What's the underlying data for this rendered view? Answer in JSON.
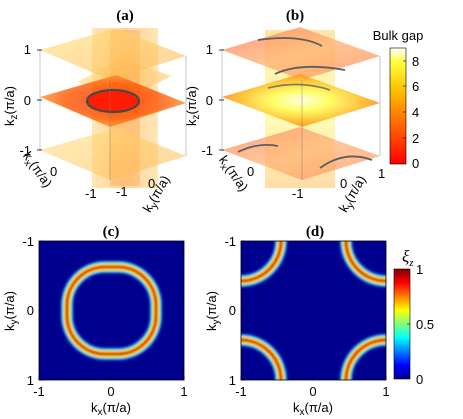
{
  "panels": {
    "a": {
      "label": "(a)"
    },
    "b": {
      "label": "(b)"
    },
    "c": {
      "label": "(c)"
    },
    "d": {
      "label": "(d)"
    }
  },
  "axis_text": {
    "kx": "k",
    "ky": "k",
    "kz": "k",
    "sub_x": "x",
    "sub_y": "y",
    "sub_z": "z",
    "unit": "(π/a)"
  },
  "colorbar_top": {
    "title": "Bulk gap",
    "ticks": [
      "8",
      "6",
      "4",
      "2",
      "0"
    ]
  },
  "colorbar_bottom": {
    "title_symbol": "ξ",
    "title_sub": "z",
    "ticks": [
      "1",
      "0.5",
      "0"
    ]
  },
  "colors": {
    "gap_low": "#ff0000",
    "gap_mid": "#ff8c00",
    "gap_high": "#ffff00",
    "gap_top": "#ffffff",
    "xi_low": "#00008f",
    "xi_high": "#800000",
    "ring_3d": "#3a4a4a"
  },
  "chart_data": [
    {
      "panel": "(a)",
      "type": "heatmap",
      "subtype": "3d-slices",
      "xlabel": "kx(π/a)",
      "ylabel": "ky(π/a)",
      "zlabel": "kz(π/a)",
      "xticks": [
        "-1",
        "0"
      ],
      "yticks": [
        "-1",
        "0"
      ],
      "zticks": [
        "-1",
        "0",
        "1"
      ],
      "xlim": [
        -1,
        1
      ],
      "ylim": [
        -1,
        1
      ],
      "zlim": [
        -1,
        1
      ],
      "colorbar": "Bulk gap",
      "clim": [
        0,
        9
      ],
      "feature": "nodal ring at kz=0, centered at k=0, radius ≈ 0.5 π/a, gap ≈ 0 on ring"
    },
    {
      "panel": "(b)",
      "type": "heatmap",
      "subtype": "3d-slices",
      "xlabel": "kx(π/a)",
      "ylabel": "ky(π/a)",
      "zlabel": "kz(π/a)",
      "xticks": [
        "0"
      ],
      "yticks": [
        "-1",
        "0",
        "1"
      ],
      "zticks": [
        "-1",
        "0",
        "1"
      ],
      "xlim": [
        -1,
        1
      ],
      "ylim": [
        -1,
        1
      ],
      "zlim": [
        -1,
        1
      ],
      "colorbar": "Bulk gap",
      "clim": [
        0,
        9
      ],
      "feature": "nodal rings centered at zone corners (±1, ±1)"
    },
    {
      "panel": "(c)",
      "type": "heatmap",
      "xlabel": "kx(π/a)",
      "ylabel": "ky(π/a)",
      "xticks": [
        "-1",
        "0",
        "1"
      ],
      "yticks": [
        "-1",
        "0",
        "1"
      ],
      "xlim": [
        -1,
        1
      ],
      "ylim": [
        1,
        -1
      ],
      "colorbar": "ξz",
      "clim": [
        0,
        1
      ],
      "ring": {
        "center": [
          0,
          0
        ],
        "radius": 0.5,
        "peak": 1,
        "background": 0
      }
    },
    {
      "panel": "(d)",
      "type": "heatmap",
      "xlabel": "kx(π/a)",
      "ylabel": "ky(π/a)",
      "xticks": [
        "-1",
        "0",
        "1"
      ],
      "yticks": [
        "-1",
        "0",
        "1"
      ],
      "xlim": [
        -1,
        1
      ],
      "ylim": [
        1,
        -1
      ],
      "colorbar": "ξz",
      "clim": [
        0,
        1
      ],
      "ring": {
        "center": [
          [
            -1,
            -1
          ],
          [
            1,
            -1
          ],
          [
            -1,
            1
          ],
          [
            1,
            1
          ]
        ],
        "radius": 0.5,
        "peak": 1,
        "background": 0
      }
    }
  ]
}
